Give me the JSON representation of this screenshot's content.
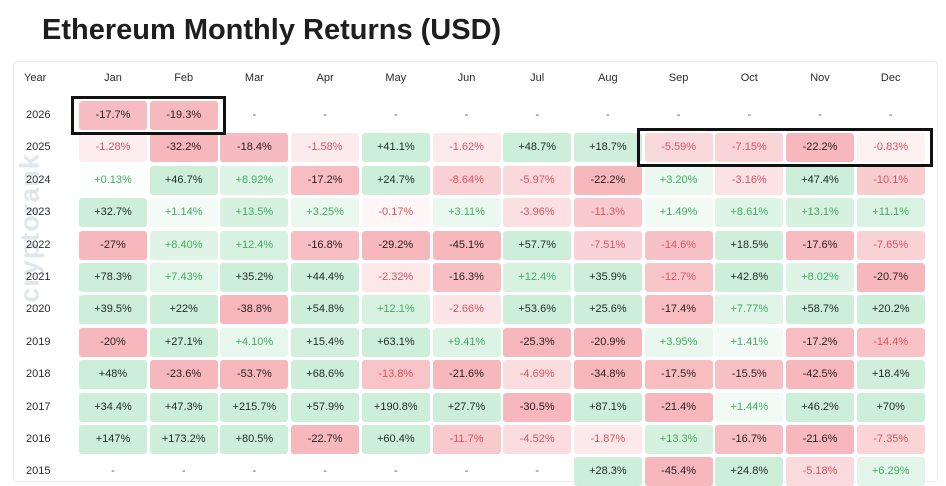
{
  "title": "Ethereum Monthly Returns (USD)",
  "watermark": "cryptorank",
  "colors": {
    "pos_strong_bg": "#cdeed9",
    "pos_weak_bg": "#eef9f2",
    "neg_strong_bg": "#f6b8bd",
    "neg_weak_bg": "#fdeef0",
    "pos_text_strong": "#1f2b22",
    "pos_text_weak": "#3fae5f",
    "neg_text_strong": "#2b1d1e",
    "neg_text_weak": "#e0525c",
    "highlight_border": "#111111"
  },
  "chart_data": {
    "type": "table",
    "title": "Ethereum Monthly Returns (USD)",
    "year_header": "Year",
    "months": [
      "Jan",
      "Feb",
      "Mar",
      "Apr",
      "May",
      "Jun",
      "Jul",
      "Aug",
      "Sep",
      "Oct",
      "Nov",
      "Dec"
    ],
    "rows": [
      {
        "year": "2026",
        "values": [
          "-17.7%",
          "-19.3%",
          "-",
          "-",
          "-",
          "-",
          "-",
          "-",
          "-",
          "-",
          "-",
          "-"
        ],
        "numbers": [
          -17.7,
          -19.3,
          null,
          null,
          null,
          null,
          null,
          null,
          null,
          null,
          null,
          null
        ]
      },
      {
        "year": "2025",
        "values": [
          "-1.28%",
          "-32.2%",
          "-18.4%",
          "-1.58%",
          "+41.1%",
          "-1.62%",
          "+48.7%",
          "+18.7%",
          "-5.59%",
          "-7.15%",
          "-22.2%",
          "-0.83%"
        ],
        "numbers": [
          -1.28,
          -32.2,
          -18.4,
          -1.58,
          41.1,
          -1.62,
          48.7,
          18.7,
          -5.59,
          -7.15,
          -22.2,
          -0.83
        ]
      },
      {
        "year": "2024",
        "values": [
          "+0.13%",
          "+46.7%",
          "+8.92%",
          "-17.2%",
          "+24.7%",
          "-8.64%",
          "-5.97%",
          "-22.2%",
          "+3.20%",
          "-3.16%",
          "+47.4%",
          "-10.1%"
        ],
        "numbers": [
          0.13,
          46.7,
          8.92,
          -17.2,
          24.7,
          -8.64,
          -5.97,
          -22.2,
          3.2,
          -3.16,
          47.4,
          -10.1
        ]
      },
      {
        "year": "2023",
        "values": [
          "+32.7%",
          "+1.14%",
          "+13.5%",
          "+3.25%",
          "-0.17%",
          "+3.11%",
          "-3.96%",
          "-11.3%",
          "+1.49%",
          "+8.61%",
          "+13.1%",
          "+11.1%"
        ],
        "numbers": [
          32.7,
          1.14,
          13.5,
          3.25,
          -0.17,
          3.11,
          -3.96,
          -11.3,
          1.49,
          8.61,
          13.1,
          11.1
        ]
      },
      {
        "year": "2022",
        "values": [
          "-27%",
          "+8.40%",
          "+12.4%",
          "-16.8%",
          "-29.2%",
          "-45.1%",
          "+57.7%",
          "-7.51%",
          "-14.6%",
          "+18.5%",
          "-17.6%",
          "-7.65%"
        ],
        "numbers": [
          -27,
          8.4,
          12.4,
          -16.8,
          -29.2,
          -45.1,
          57.7,
          -7.51,
          -14.6,
          18.5,
          -17.6,
          -7.65
        ]
      },
      {
        "year": "2021",
        "values": [
          "+78.3%",
          "+7.43%",
          "+35.2%",
          "+44.4%",
          "-2.32%",
          "-16.3%",
          "+12.4%",
          "+35.9%",
          "-12.7%",
          "+42.8%",
          "+8.02%",
          "-20.7%"
        ],
        "numbers": [
          78.3,
          7.43,
          35.2,
          44.4,
          -2.32,
          -16.3,
          12.4,
          35.9,
          -12.7,
          42.8,
          8.02,
          -20.7
        ]
      },
      {
        "year": "2020",
        "values": [
          "+39.5%",
          "+22%",
          "-38.8%",
          "+54.8%",
          "+12.1%",
          "-2.66%",
          "+53.6%",
          "+25.6%",
          "-17.4%",
          "+7.77%",
          "+58.7%",
          "+20.2%"
        ],
        "numbers": [
          39.5,
          22,
          -38.8,
          54.8,
          12.1,
          -2.66,
          53.6,
          25.6,
          -17.4,
          7.77,
          58.7,
          20.2
        ]
      },
      {
        "year": "2019",
        "values": [
          "-20%",
          "+27.1%",
          "+4.10%",
          "+15.4%",
          "+63.1%",
          "+9.41%",
          "-25.3%",
          "-20.9%",
          "+3.95%",
          "+1.41%",
          "-17.2%",
          "-14.4%"
        ],
        "numbers": [
          -20,
          27.1,
          4.1,
          15.4,
          63.1,
          9.41,
          -25.3,
          -20.9,
          3.95,
          1.41,
          -17.2,
          -14.4
        ]
      },
      {
        "year": "2018",
        "values": [
          "+48%",
          "-23.6%",
          "-53.7%",
          "+68.6%",
          "-13.8%",
          "-21.6%",
          "-4.69%",
          "-34.8%",
          "-17.5%",
          "-15.5%",
          "-42.5%",
          "+18.4%"
        ],
        "numbers": [
          48,
          -23.6,
          -53.7,
          68.6,
          -13.8,
          -21.6,
          -4.69,
          -34.8,
          -17.5,
          -15.5,
          -42.5,
          18.4
        ]
      },
      {
        "year": "2017",
        "values": [
          "+34.4%",
          "+47.3%",
          "+215.7%",
          "+57.9%",
          "+190.8%",
          "+27.7%",
          "-30.5%",
          "+87.1%",
          "-21.4%",
          "+1.44%",
          "+46.2%",
          "+70%"
        ],
        "numbers": [
          34.4,
          47.3,
          215.7,
          57.9,
          190.8,
          27.7,
          -30.5,
          87.1,
          -21.4,
          1.44,
          46.2,
          70
        ]
      },
      {
        "year": "2016",
        "values": [
          "+147%",
          "+173.2%",
          "+80.5%",
          "-22.7%",
          "+60.4%",
          "-11.7%",
          "-4.52%",
          "-1.87%",
          "+13.3%",
          "-16.7%",
          "-21.6%",
          "-7.35%"
        ],
        "numbers": [
          147,
          173.2,
          80.5,
          -22.7,
          60.4,
          -11.7,
          -4.52,
          -1.87,
          13.3,
          -16.7,
          -21.6,
          -7.35
        ]
      },
      {
        "year": "2015",
        "values": [
          "-",
          "-",
          "-",
          "-",
          "-",
          "-",
          "-",
          "+28.3%",
          "-45.4%",
          "+24.8%",
          "-5.18%",
          "+6.29%"
        ],
        "numbers": [
          null,
          null,
          null,
          null,
          null,
          null,
          null,
          28.3,
          -45.4,
          24.8,
          -5.18,
          6.29
        ]
      }
    ],
    "highlights": [
      {
        "year": "2026",
        "months": [
          "Jan",
          "Feb"
        ]
      },
      {
        "year": "2025",
        "months": [
          "Sep",
          "Oct",
          "Nov",
          "Dec"
        ]
      }
    ]
  }
}
